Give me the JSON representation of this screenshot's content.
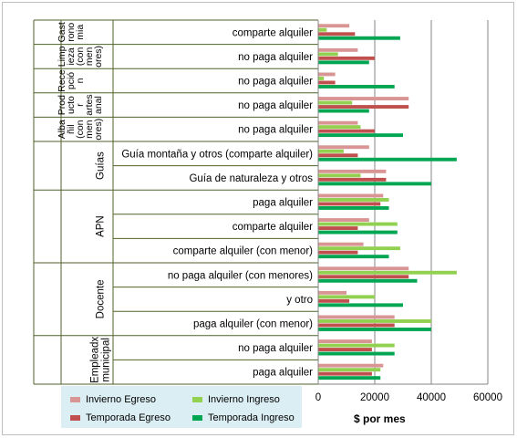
{
  "chart_data": {
    "type": "bar",
    "orientation": "horizontal",
    "title": "",
    "xlabel": "$ por mes",
    "ylabel": "",
    "xlim": [
      0,
      60000
    ],
    "xticks": [
      0,
      20000,
      40000,
      60000
    ],
    "xtick_labels": [
      "0",
      "20000",
      "40000",
      "60000"
    ],
    "grid": true,
    "legend_position": "bottom-left",
    "groups": [
      {
        "lines": [
          "Gast",
          "rono",
          "mia"
        ],
        "start": 0,
        "end": 1
      },
      {
        "lines": [
          "Limp",
          "ieza",
          "(con",
          "men",
          "ores)"
        ],
        "start": 1,
        "end": 2
      },
      {
        "lines": [
          "Rece",
          "pció",
          "n"
        ],
        "start": 2,
        "end": 3
      },
      {
        "lines": [
          "Prod",
          "ucto",
          "r",
          "artes",
          "anal"
        ],
        "start": 3,
        "end": 4
      },
      {
        "lines": [
          "Alba",
          "ñil",
          "(con",
          "men",
          "ores)"
        ],
        "start": 4,
        "end": 5
      },
      {
        "lines": [
          "Guías"
        ],
        "start": 5,
        "end": 7
      },
      {
        "lines": [
          "APN"
        ],
        "start": 7,
        "end": 10
      },
      {
        "lines": [
          "Docente"
        ],
        "start": 10,
        "end": 13
      },
      {
        "lines": [
          "Empleadx",
          "municipal"
        ],
        "start": 13,
        "end": 15
      }
    ],
    "categories": [
      "comparte alquiler",
      "no paga alquiler",
      "no paga alquiler",
      "no paga alquiler",
      "no paga alquiler",
      "Guía montaña y otros (comparte alquiler)",
      "Guía de naturaleza y otros",
      "paga alquiler",
      "comparte alquiler",
      "comparte alquiler (con menor)",
      "no paga alquiler (con menores)",
      "y otro",
      "paga alquiler (con menor)",
      "no paga alquiler",
      "paga alquiler"
    ],
    "series": [
      {
        "name": "Invierno Egreso",
        "color": "#d99594",
        "values": [
          11000,
          14000,
          6000,
          32000,
          14000,
          18000,
          24000,
          23000,
          18000,
          16000,
          32000,
          10000,
          27000,
          19000,
          23000
        ]
      },
      {
        "name": "Invierno Ingreso",
        "color": "#92d050",
        "values": [
          3000,
          7000,
          2000,
          12000,
          15000,
          9000,
          15000,
          25000,
          28000,
          29000,
          49000,
          20000,
          40000,
          27000,
          22000
        ]
      },
      {
        "name": "Temporada Egreso",
        "color": "#c0504d",
        "values": [
          13000,
          20000,
          6000,
          32000,
          20000,
          14000,
          24000,
          22000,
          14000,
          14000,
          32000,
          11000,
          27000,
          19000,
          19000
        ]
      },
      {
        "name": "Temporada Ingreso",
        "color": "#00a651",
        "values": [
          29000,
          18000,
          27000,
          18000,
          30000,
          49000,
          40000,
          25000,
          28000,
          25000,
          35000,
          30000,
          40000,
          27000,
          22000
        ]
      }
    ]
  }
}
